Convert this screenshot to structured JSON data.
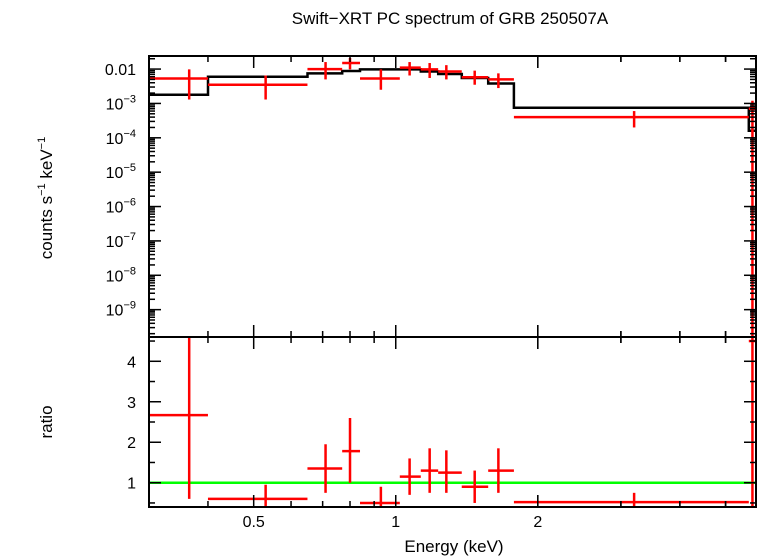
{
  "chart_data": {
    "type": "scatter",
    "title": "Swift−XRT PC spectrum of GRB 250507A",
    "xlabel": "Energy (keV)",
    "x_scale": "log",
    "xlim": [
      0.3,
      5.8
    ],
    "x_ticks": [
      {
        "value": 0.5,
        "label": "0.5"
      },
      {
        "value": 1,
        "label": "1"
      },
      {
        "value": 2,
        "label": "2"
      }
    ],
    "colors": {
      "data": "#ff0000",
      "model": "#000000",
      "unity": "#00ff00"
    },
    "panels": [
      {
        "name": "spectrum",
        "ylabel_text": "counts s",
        "ylabel_sup1": "−1",
        "ylabel_mid": " keV",
        "ylabel_sup2": "−1",
        "y_scale": "log",
        "ylim": [
          1.6e-10,
          0.024
        ],
        "y_ticks": [
          {
            "value": 0.01,
            "base": "0.01",
            "exp": ""
          },
          {
            "value": 0.001,
            "base": "10",
            "exp": "−3"
          },
          {
            "value": 0.0001,
            "base": "10",
            "exp": "−4"
          },
          {
            "value": 1e-05,
            "base": "10",
            "exp": "−5"
          },
          {
            "value": 1e-06,
            "base": "10",
            "exp": "−6"
          },
          {
            "value": 1e-07,
            "base": "10",
            "exp": "−7"
          },
          {
            "value": 1e-08,
            "base": "10",
            "exp": "−8"
          },
          {
            "value": 1e-09,
            "base": "10",
            "exp": "−9"
          }
        ],
        "data": [
          {
            "x": 0.365,
            "xlo": 0.3,
            "xhi": 0.4,
            "y": 0.0053,
            "ylo": 0.0013,
            "yhi": 0.0098
          },
          {
            "x": 0.53,
            "xlo": 0.4,
            "xhi": 0.65,
            "y": 0.0035,
            "ylo": 0.0013,
            "yhi": 0.0065
          },
          {
            "x": 0.71,
            "xlo": 0.65,
            "xhi": 0.77,
            "y": 0.01,
            "ylo": 0.005,
            "yhi": 0.016
          },
          {
            "x": 0.8,
            "xlo": 0.77,
            "xhi": 0.84,
            "y": 0.015,
            "ylo": 0.0098,
            "yhi": 0.021
          },
          {
            "x": 0.93,
            "xlo": 0.84,
            "xhi": 1.02,
            "y": 0.0053,
            "ylo": 0.0025,
            "yhi": 0.0098
          },
          {
            "x": 1.07,
            "xlo": 1.02,
            "xhi": 1.13,
            "y": 0.011,
            "ylo": 0.0065,
            "yhi": 0.016
          },
          {
            "x": 1.18,
            "xlo": 1.13,
            "xhi": 1.23,
            "y": 0.0098,
            "ylo": 0.0055,
            "yhi": 0.015
          },
          {
            "x": 1.28,
            "xlo": 1.23,
            "xhi": 1.38,
            "y": 0.0085,
            "ylo": 0.005,
            "yhi": 0.013
          },
          {
            "x": 1.47,
            "xlo": 1.38,
            "xhi": 1.57,
            "y": 0.0058,
            "ylo": 0.0035,
            "yhi": 0.009
          },
          {
            "x": 1.65,
            "xlo": 1.57,
            "xhi": 1.78,
            "y": 0.005,
            "ylo": 0.0028,
            "yhi": 0.0075
          },
          {
            "x": 3.2,
            "xlo": 1.78,
            "xhi": 5.6,
            "y": 0.0004,
            "ylo": 0.0002,
            "yhi": 0.0006
          },
          {
            "x": 5.7,
            "xlo": 5.6,
            "xhi": 5.8,
            "y": 0.0007,
            "ylo": 1.6e-10,
            "yhi": 0.0012
          }
        ],
        "model_steps": [
          {
            "xlo": 0.3,
            "xhi": 0.4,
            "y": 0.0018
          },
          {
            "xlo": 0.4,
            "xhi": 0.65,
            "y": 0.006
          },
          {
            "xlo": 0.65,
            "xhi": 0.77,
            "y": 0.0075
          },
          {
            "xlo": 0.77,
            "xhi": 0.84,
            "y": 0.0088
          },
          {
            "xlo": 0.84,
            "xhi": 1.02,
            "y": 0.0098
          },
          {
            "xlo": 1.02,
            "xhi": 1.13,
            "y": 0.0098
          },
          {
            "xlo": 1.13,
            "xhi": 1.23,
            "y": 0.0085
          },
          {
            "xlo": 1.23,
            "xhi": 1.38,
            "y": 0.0072
          },
          {
            "xlo": 1.38,
            "xhi": 1.57,
            "y": 0.0055
          },
          {
            "xlo": 1.57,
            "xhi": 1.78,
            "y": 0.0038
          },
          {
            "xlo": 1.78,
            "xhi": 5.6,
            "y": 0.00075
          },
          {
            "xlo": 5.6,
            "xhi": 5.8,
            "y": 0.00016
          }
        ]
      },
      {
        "name": "ratio",
        "ylabel_text": "ratio",
        "y_scale": "linear",
        "ylim": [
          0.4,
          4.6
        ],
        "y_ticks": [
          {
            "value": 1,
            "label": "1"
          },
          {
            "value": 2,
            "label": "2"
          },
          {
            "value": 3,
            "label": "3"
          },
          {
            "value": 4,
            "label": "4"
          }
        ],
        "unity_line": 1,
        "data": [
          {
            "x": 0.365,
            "xlo": 0.3,
            "xhi": 0.4,
            "y": 2.67,
            "ylo": 0.6,
            "yhi": 4.6
          },
          {
            "x": 0.53,
            "xlo": 0.4,
            "xhi": 0.65,
            "y": 0.6,
            "ylo": 0.25,
            "yhi": 0.95
          },
          {
            "x": 0.71,
            "xlo": 0.65,
            "xhi": 0.77,
            "y": 1.35,
            "ylo": 0.75,
            "yhi": 1.95
          },
          {
            "x": 0.8,
            "xlo": 0.77,
            "xhi": 0.84,
            "y": 1.78,
            "ylo": 1.0,
            "yhi": 2.6
          },
          {
            "x": 0.93,
            "xlo": 0.84,
            "xhi": 1.02,
            "y": 0.5,
            "ylo": 0.2,
            "yhi": 0.9
          },
          {
            "x": 1.07,
            "xlo": 1.02,
            "xhi": 1.13,
            "y": 1.15,
            "ylo": 0.7,
            "yhi": 1.6
          },
          {
            "x": 1.18,
            "xlo": 1.13,
            "xhi": 1.23,
            "y": 1.3,
            "ylo": 0.75,
            "yhi": 1.85
          },
          {
            "x": 1.28,
            "xlo": 1.23,
            "xhi": 1.38,
            "y": 1.25,
            "ylo": 0.75,
            "yhi": 1.8
          },
          {
            "x": 1.47,
            "xlo": 1.38,
            "xhi": 1.57,
            "y": 0.9,
            "ylo": 0.5,
            "yhi": 1.3
          },
          {
            "x": 1.65,
            "xlo": 1.57,
            "xhi": 1.78,
            "y": 1.3,
            "ylo": 0.75,
            "yhi": 1.85
          },
          {
            "x": 3.2,
            "xlo": 1.78,
            "xhi": 5.6,
            "y": 0.52,
            "ylo": 0.3,
            "yhi": 0.75
          },
          {
            "x": 5.7,
            "xlo": 5.6,
            "xhi": 5.8,
            "y": 4.5,
            "ylo": 0.4,
            "yhi": 4.6
          }
        ]
      }
    ]
  }
}
